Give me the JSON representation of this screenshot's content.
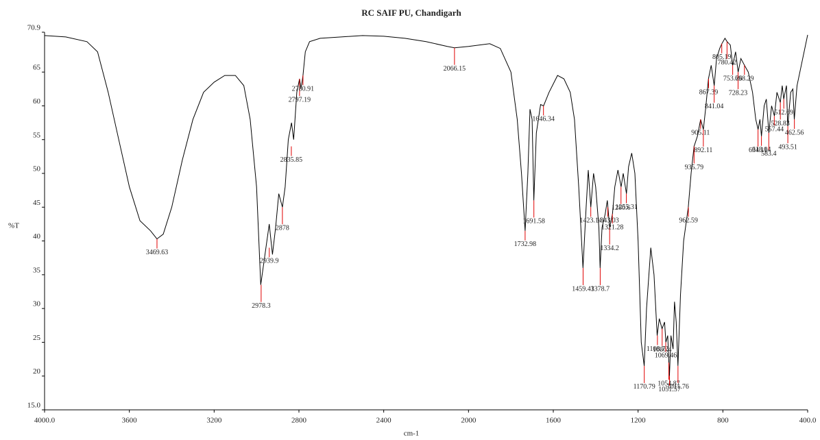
{
  "chart_data": {
    "type": "line",
    "title": "RC SAIF PU, Chandigarh",
    "xlabel": "cm-1",
    "ylabel": "%T",
    "xlim": [
      4000,
      400
    ],
    "ylim": [
      15.0,
      70.9
    ],
    "xticks": [
      {
        "value": 4000,
        "label": "4000.0"
      },
      3600,
      3200,
      2800,
      2400,
      2000,
      1600,
      1200,
      800,
      {
        "value": 400,
        "label": "400.0"
      }
    ],
    "yticks": [
      {
        "value": 15,
        "label": "15.0"
      },
      20,
      25,
      30,
      35,
      40,
      45,
      50,
      55,
      60,
      65,
      70.9
    ],
    "x": [
      4000,
      3900,
      3800,
      3750,
      3700,
      3650,
      3600,
      3550,
      3500,
      3470,
      3440,
      3400,
      3350,
      3300,
      3250,
      3200,
      3150,
      3100,
      3060,
      3030,
      3000,
      2980,
      2960,
      2940,
      2925,
      2910,
      2895,
      2878,
      2865,
      2850,
      2835,
      2825,
      2810,
      2797,
      2790,
      2781,
      2770,
      2750,
      2700,
      2600,
      2500,
      2400,
      2300,
      2200,
      2100,
      2066,
      2000,
      1900,
      1850,
      1800,
      1770,
      1750,
      1733,
      1720,
      1710,
      1700,
      1692,
      1680,
      1660,
      1646,
      1620,
      1580,
      1550,
      1520,
      1500,
      1480,
      1460,
      1445,
      1435,
      1423,
      1410,
      1400,
      1385,
      1379,
      1370,
      1355,
      1345,
      1334,
      1321,
      1310,
      1295,
      1280,
      1270,
      1255,
      1245,
      1230,
      1215,
      1200,
      1185,
      1171,
      1160,
      1140,
      1125,
      1110,
      1100,
      1087,
      1075,
      1069,
      1060,
      1052,
      1045,
      1035,
      1028,
      1020,
      1012,
      1000,
      985,
      963,
      950,
      936,
      920,
      905,
      892,
      880,
      868,
      855,
      841,
      830,
      815,
      805,
      790,
      780,
      765,
      754,
      740,
      728,
      715,
      698,
      680,
      660,
      645,
      634,
      625,
      618,
      605,
      595,
      583,
      570,
      557,
      545,
      529,
      520,
      513,
      500,
      494,
      480,
      470,
      463,
      450,
      430,
      400
    ],
    "series": [
      {
        "name": "%T",
        "color": "#000000",
        "values": [
          70.4,
          70.2,
          69.5,
          68,
          62,
          55,
          48,
          43,
          41.5,
          40.3,
          41,
          45,
          52,
          58,
          62,
          63.5,
          64.5,
          64.5,
          63,
          58,
          48,
          33.5,
          38,
          42.5,
          38,
          42,
          47,
          45,
          48,
          55,
          57.5,
          55,
          62,
          64,
          62.5,
          64.5,
          68,
          69.5,
          70,
          70.2,
          70.4,
          70.3,
          70,
          69.5,
          68.8,
          68.6,
          68.8,
          69.2,
          68.5,
          65,
          58,
          50,
          41.5,
          50,
          59.5,
          58,
          46,
          56,
          60.2,
          60,
          62,
          64.5,
          64,
          62,
          58,
          48,
          36,
          45,
          50.5,
          45,
          50,
          48,
          42,
          36,
          42,
          44,
          46,
          42,
          44,
          48,
          50.5,
          48,
          50,
          47,
          51,
          53,
          50,
          40,
          25,
          21.5,
          30,
          39,
          35,
          26,
          28.5,
          27,
          28,
          25,
          26,
          20,
          26,
          24,
          31,
          28,
          21.5,
          32,
          40,
          45,
          50,
          54,
          55.5,
          58,
          56.5,
          60,
          64,
          66,
          63,
          67,
          68.5,
          69.2,
          70,
          69.5,
          69,
          66,
          68,
          65,
          67,
          66,
          65,
          62,
          58,
          56.5,
          58,
          55.5,
          60,
          61,
          56,
          60,
          58.5,
          62,
          60.5,
          63,
          61,
          63,
          57,
          62,
          62.5,
          58,
          63,
          66,
          70.5
        ]
      }
    ],
    "peaks": {
      "color": "#e00000",
      "x": [
        3469.63,
        2978.3,
        2939.9,
        2878.0,
        2835.85,
        2797.19,
        2780.91,
        2066.15,
        1732.98,
        1691.58,
        1646.34,
        1459.43,
        1423.14,
        1378.7,
        1343.03,
        1334.2,
        1321.28,
        1280.6,
        1255.31,
        1170.79,
        1108.72,
        1086.4,
        1069.46,
        1054.87,
        1051.57,
        1011.76,
        962.59,
        935.79,
        905.11,
        892.11,
        867.39,
        841.04,
        805.19,
        780.42,
        753.76,
        728.23,
        698.29,
        634.11,
        618.04,
        583.4,
        557.44,
        528.83,
        512.69,
        493.51,
        462.56
      ],
      "values": [
        40.3,
        33.5,
        39,
        45,
        54,
        64,
        64.5,
        68.6,
        41.5,
        46,
        60,
        36,
        45,
        36,
        45,
        42,
        44,
        48,
        47,
        21.5,
        26,
        27,
        25,
        22,
        20,
        21.5,
        45,
        54,
        58,
        56.5,
        64,
        63,
        69.2,
        69.5,
        66,
        65,
        66,
        56.5,
        55.5,
        56,
        58.5,
        60.5,
        61,
        57,
        58
      ]
    }
  }
}
